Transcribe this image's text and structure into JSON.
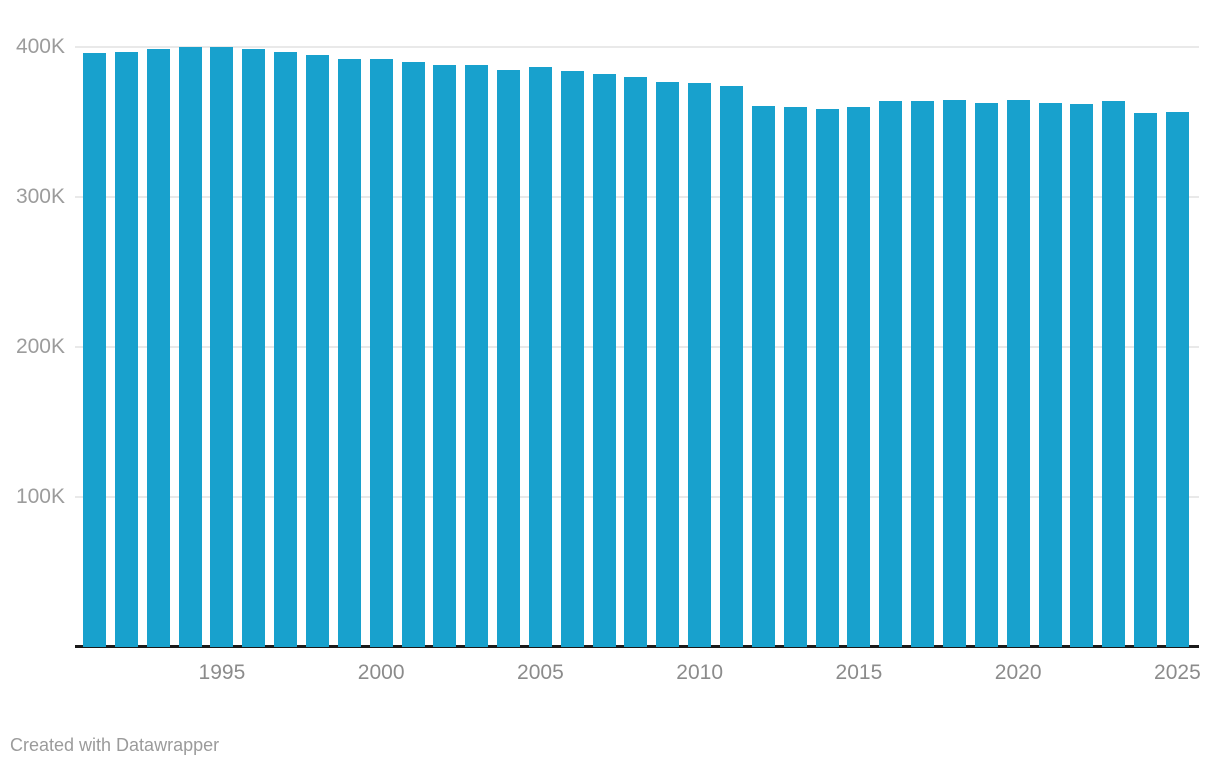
{
  "chart_data": {
    "type": "bar",
    "x": [
      1991,
      1992,
      1993,
      1994,
      1995,
      1996,
      1997,
      1998,
      1999,
      2000,
      2001,
      2002,
      2003,
      2004,
      2005,
      2006,
      2007,
      2008,
      2009,
      2010,
      2011,
      2012,
      2013,
      2014,
      2015,
      2016,
      2017,
      2018,
      2019,
      2020,
      2021,
      2022,
      2023,
      2024,
      2025
    ],
    "values": [
      396000,
      397000,
      399000,
      400000,
      400000,
      399000,
      397000,
      395000,
      392000,
      392000,
      390000,
      388000,
      388000,
      385000,
      387000,
      384000,
      382000,
      380000,
      377000,
      376000,
      374000,
      361000,
      360000,
      359000,
      360000,
      364000,
      364000,
      365000,
      363000,
      365000,
      363000,
      362000,
      364000,
      356000,
      357000
    ],
    "xlabel": "",
    "ylabel": "",
    "ylim": [
      0,
      400000
    ],
    "grid": true,
    "legend": false,
    "bar_color": "#18a1cd",
    "yticks": [
      {
        "value": 100000,
        "label": "100K"
      },
      {
        "value": 200000,
        "label": "200K"
      },
      {
        "value": 300000,
        "label": "300K"
      },
      {
        "value": 400000,
        "label": "400K"
      }
    ],
    "xticks": [
      {
        "value": 1995,
        "label": "1995"
      },
      {
        "value": 2000,
        "label": "2000"
      },
      {
        "value": 2005,
        "label": "2005"
      },
      {
        "value": 2010,
        "label": "2010"
      },
      {
        "value": 2015,
        "label": "2015"
      },
      {
        "value": 2020,
        "label": "2020"
      },
      {
        "value": 2025,
        "label": "2025"
      }
    ]
  },
  "colors": {
    "background": "#ffffff",
    "bar": "#18a1cd",
    "gridline": "#e9e9e9",
    "axis_line": "#1a1a1a",
    "y_tick_label": "#9c9c9c",
    "x_tick_label": "#8b8b8b",
    "footer_text": "#9b9b9b"
  },
  "footer": {
    "attribution": "Created with Datawrapper"
  }
}
